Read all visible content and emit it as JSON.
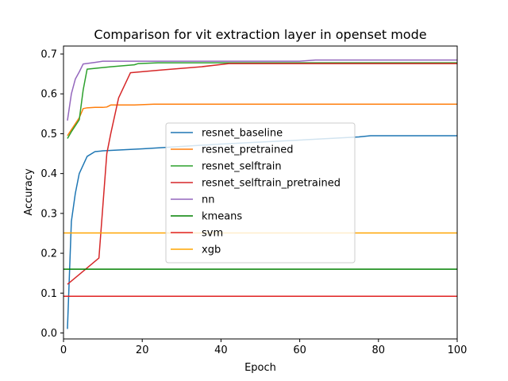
{
  "chart_data": {
    "type": "line",
    "title": "Comparison for vit extraction layer in openset mode",
    "xlabel": "Epoch",
    "ylabel": "Accuracy",
    "xlim": [
      0,
      100
    ],
    "ylim": [
      -0.015,
      0.72
    ],
    "xticks": [
      0,
      20,
      40,
      60,
      80,
      100
    ],
    "yticks": [
      0.0,
      0.1,
      0.2,
      0.3,
      0.4,
      0.5,
      0.6,
      0.7
    ],
    "ytick_labels": [
      "0.0",
      "0.1",
      "0.2",
      "0.3",
      "0.4",
      "0.5",
      "0.6",
      "0.7"
    ],
    "grid": false,
    "legend_position": "center",
    "series": [
      {
        "name": "resnet_baseline",
        "color": "#1f77b4",
        "x": [
          1,
          2,
          3,
          4,
          6,
          8,
          10,
          20,
          30,
          40,
          60,
          75,
          78,
          100
        ],
        "y": [
          0.01,
          0.28,
          0.35,
          0.4,
          0.443,
          0.455,
          0.457,
          0.462,
          0.468,
          0.474,
          0.484,
          0.492,
          0.495,
          0.495
        ]
      },
      {
        "name": "resnet_pretrained",
        "color": "#ff7f0e",
        "x": [
          1,
          2,
          3,
          4,
          5,
          6,
          8,
          10,
          11,
          12,
          18,
          23,
          100
        ],
        "y": [
          0.495,
          0.51,
          0.525,
          0.54,
          0.563,
          0.565,
          0.566,
          0.566,
          0.567,
          0.572,
          0.572,
          0.574,
          0.574
        ]
      },
      {
        "name": "resnet_selftrain",
        "color": "#2ca02c",
        "x": [
          1,
          2,
          3,
          4,
          5,
          6,
          8,
          12,
          18,
          19,
          24,
          100
        ],
        "y": [
          0.488,
          0.505,
          0.52,
          0.535,
          0.61,
          0.662,
          0.664,
          0.668,
          0.673,
          0.676,
          0.678,
          0.678
        ]
      },
      {
        "name": "resnet_selftrain_pretrained",
        "color": "#d62728",
        "x": [
          1,
          5,
          9,
          11,
          12,
          14,
          17,
          25,
          35,
          42,
          100
        ],
        "y": [
          0.122,
          0.155,
          0.188,
          0.45,
          0.5,
          0.59,
          0.653,
          0.66,
          0.668,
          0.676,
          0.676
        ]
      },
      {
        "name": "nn",
        "color": "#9467bd",
        "x": [
          1,
          2,
          3,
          4,
          5,
          8,
          10,
          20,
          40,
          60,
          64,
          100
        ],
        "y": [
          0.533,
          0.6,
          0.637,
          0.655,
          0.675,
          0.679,
          0.682,
          0.682,
          0.682,
          0.682,
          0.685,
          0.685
        ]
      },
      {
        "name": "kmeans",
        "color": "#008000",
        "x": [
          0,
          100
        ],
        "y": [
          0.16,
          0.16
        ]
      },
      {
        "name": "svm",
        "color": "#e02222",
        "x": [
          0,
          100
        ],
        "y": [
          0.092,
          0.092
        ]
      },
      {
        "name": "xgb",
        "color": "#ffa500",
        "x": [
          0,
          100
        ],
        "y": [
          0.251,
          0.251
        ]
      }
    ]
  }
}
